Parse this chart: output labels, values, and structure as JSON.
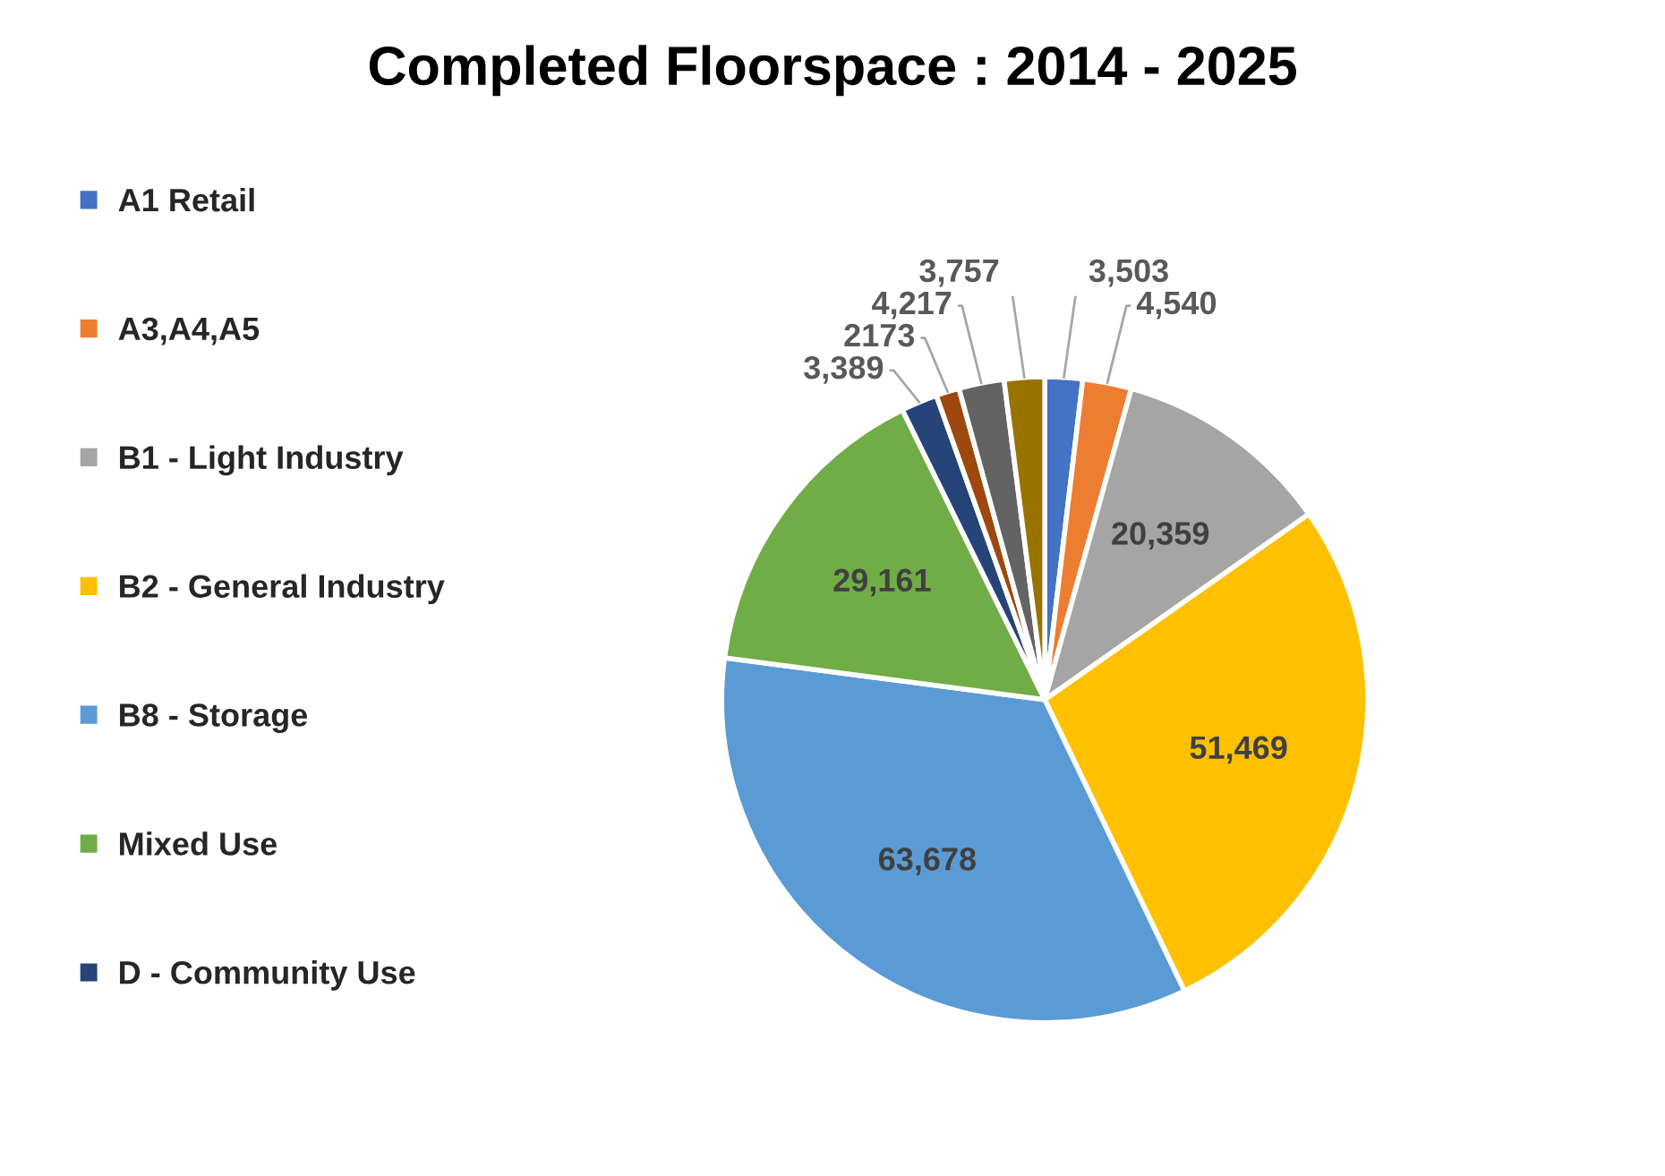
{
  "chart_data": {
    "type": "pie",
    "title": "Completed Floorspace : 2014 - 2025",
    "categories": [
      "A1 Retail",
      "A3,A4,A5",
      "B1 - Light Industry",
      "B2 - General Industry",
      "B8 - Storage",
      "Mixed Use",
      "D - Community Use",
      null,
      null,
      null
    ],
    "values": [
      3503,
      4540,
      20359,
      51469,
      63678,
      29161,
      3389,
      2173,
      4217,
      3757
    ],
    "value_labels": [
      "3,503",
      "4,540",
      "20,359",
      "51,469",
      "63,678",
      "29,161",
      "3,389",
      "2173",
      "4,217",
      "3,757"
    ],
    "colors": [
      "#4472c4",
      "#ed7d31",
      "#a5a5a5",
      "#ffc000",
      "#5b9bd5",
      "#70ad47",
      "#264478",
      "#9e480e",
      "#636363",
      "#997300"
    ],
    "legend": "left"
  }
}
